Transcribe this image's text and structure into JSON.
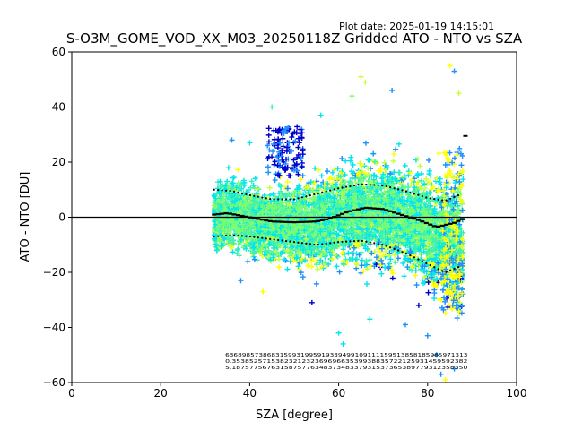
{
  "header": {
    "plot_date": "Plot date: 2025-01-19 14:15:01",
    "title": "S-O3M_GOME_VOD_XX_M03_20250118Z Gridded ATO - NTO vs SZA"
  },
  "chart_data": {
    "type": "scatter",
    "xlabel": "SZA [degree]",
    "ylabel": "ATO - NTO [DU]",
    "xlim": [
      0,
      100
    ],
    "ylim": [
      -60,
      60
    ],
    "xticks": [
      0,
      20,
      40,
      60,
      80,
      100
    ],
    "yticks": [
      -60,
      -40,
      -20,
      0,
      20,
      40,
      60
    ],
    "grid": false,
    "marker": "+",
    "sza_range": [
      32,
      88
    ],
    "reference_line_y": 0,
    "colors": {
      "dark_blue": "#0000cd",
      "blue": "#1e90ff",
      "cyan": "#00e5ee",
      "aquamarine": "#40f0b0",
      "green": "#7cfc70",
      "yellow_green": "#c8ff3c",
      "yellow": "#ffff00"
    },
    "mean_curve": [
      [
        32,
        1
      ],
      [
        35,
        1.5
      ],
      [
        40,
        0
      ],
      [
        45,
        -1.5
      ],
      [
        50,
        -1.8
      ],
      [
        55,
        -1.5
      ],
      [
        58,
        -0.5
      ],
      [
        62,
        2
      ],
      [
        66,
        3.5
      ],
      [
        70,
        3
      ],
      [
        74,
        1
      ],
      [
        78,
        -1
      ],
      [
        82,
        -3.5
      ],
      [
        86,
        -2
      ],
      [
        88,
        -0.5
      ]
    ],
    "upper_sigma_curve": [
      [
        32,
        10
      ],
      [
        36,
        9.5
      ],
      [
        40,
        8
      ],
      [
        45,
        6.5
      ],
      [
        50,
        6.5
      ],
      [
        55,
        8.5
      ],
      [
        60,
        10.5
      ],
      [
        65,
        12
      ],
      [
        70,
        11.5
      ],
      [
        75,
        9.5
      ],
      [
        80,
        7
      ],
      [
        84,
        6
      ],
      [
        87,
        8
      ]
    ],
    "lower_sigma_curve": [
      [
        32,
        -7
      ],
      [
        36,
        -6.5
      ],
      [
        40,
        -7
      ],
      [
        45,
        -8
      ],
      [
        50,
        -9
      ],
      [
        55,
        -10
      ],
      [
        60,
        -9
      ],
      [
        65,
        -8.5
      ],
      [
        70,
        -10
      ],
      [
        75,
        -13
      ],
      [
        80,
        -17
      ],
      [
        84,
        -20
      ],
      [
        87,
        -18
      ]
    ],
    "count_rows": [
      "6368985738683159931995919339499109111159513858185985971313",
      "0.353852571538232123236969663539938835722125931459592382",
      "5.187577567631587577634837348337931537365389779312358350"
    ],
    "cloud_extent": {
      "upper": [
        [
          32,
          16
        ],
        [
          36,
          22
        ],
        [
          40,
          20
        ],
        [
          45,
          18
        ],
        [
          50,
          19
        ],
        [
          55,
          22
        ],
        [
          60,
          27
        ],
        [
          64,
          30
        ],
        [
          68,
          32
        ],
        [
          72,
          31
        ],
        [
          76,
          28
        ],
        [
          80,
          27
        ],
        [
          84,
          28
        ],
        [
          88,
          29
        ]
      ],
      "lower": [
        [
          32,
          -17
        ],
        [
          36,
          -19
        ],
        [
          40,
          -22
        ],
        [
          45,
          -24
        ],
        [
          50,
          -25
        ],
        [
          55,
          -26
        ],
        [
          60,
          -26
        ],
        [
          64,
          -27
        ],
        [
          68,
          -28
        ],
        [
          72,
          -29
        ],
        [
          76,
          -31
        ],
        [
          80,
          -36
        ],
        [
          84,
          -44
        ],
        [
          88,
          -52
        ]
      ]
    }
  }
}
